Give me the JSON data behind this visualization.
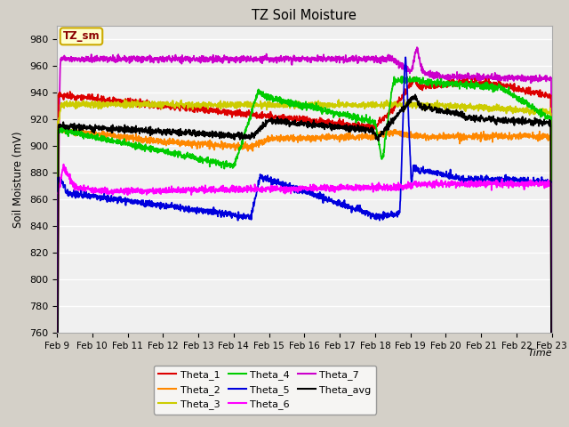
{
  "title": "TZ Soil Moisture",
  "xlabel": "Time",
  "ylabel": "Soil Moisture (mV)",
  "ylim": [
    760,
    990
  ],
  "yticks": [
    760,
    780,
    800,
    820,
    840,
    860,
    880,
    900,
    920,
    940,
    960,
    980
  ],
  "x_labels": [
    "Feb 9",
    "Feb 10",
    "Feb 11",
    "Feb 12",
    "Feb 13",
    "Feb 14",
    "Feb 15",
    "Feb 16",
    "Feb 17",
    "Feb 18",
    "Feb 19",
    "Feb 20",
    "Feb 21",
    "Feb 22",
    "Feb 23"
  ],
  "fig_bg": "#d4d0c8",
  "plot_bg": "#f0f0f0",
  "grid_color": "#ffffff",
  "series_colors": {
    "Theta_1": "#dd0000",
    "Theta_2": "#ff8800",
    "Theta_3": "#cccc00",
    "Theta_4": "#00cc00",
    "Theta_5": "#0000dd",
    "Theta_6": "#ff00ff",
    "Theta_7": "#cc00cc",
    "Theta_avg": "#000000"
  },
  "legend_ncol": 3,
  "legend_order": [
    "Theta_1",
    "Theta_2",
    "Theta_3",
    "Theta_4",
    "Theta_5",
    "Theta_6",
    "Theta_7",
    "Theta_avg"
  ],
  "tzlabel": "TZ_sm",
  "tzlabel_color": "#8b0000",
  "tzbox_facecolor": "#ffffcc",
  "tzbox_edgecolor": "#ccaa00"
}
